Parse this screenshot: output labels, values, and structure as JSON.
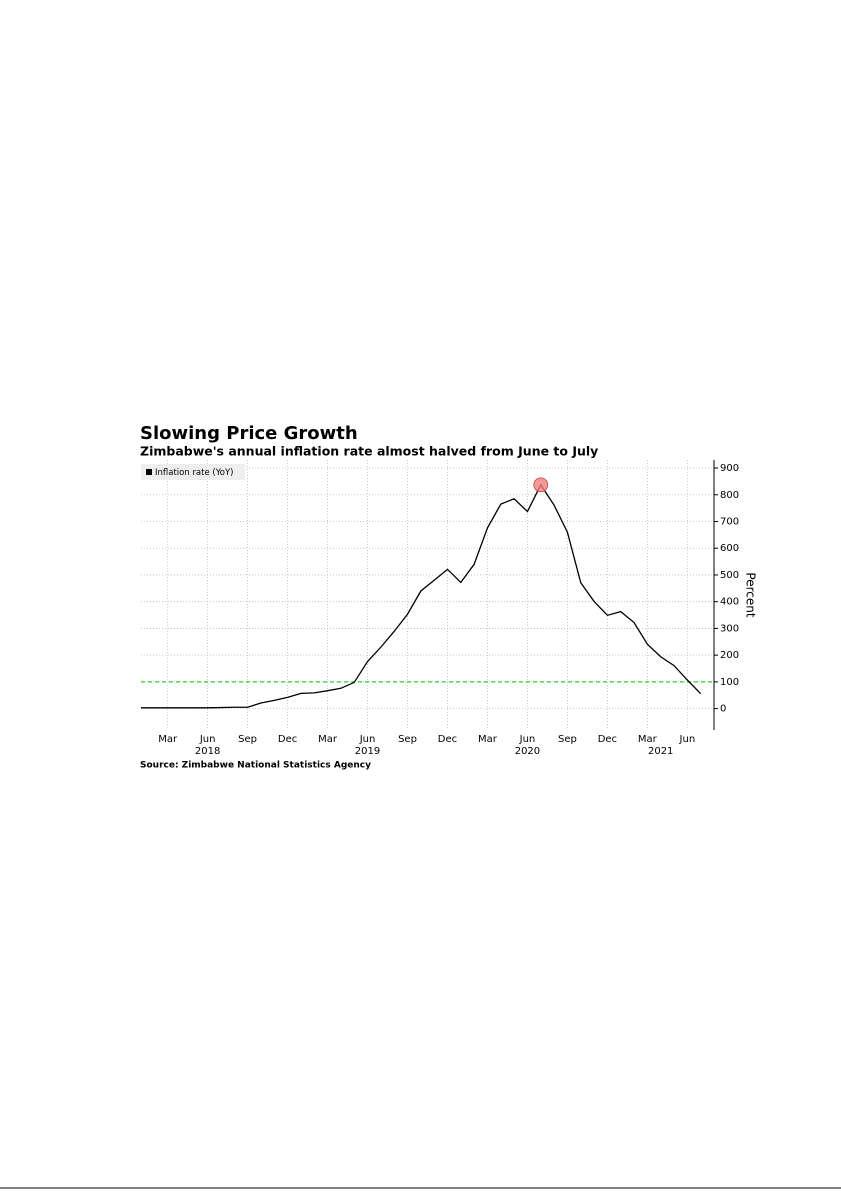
{
  "chart_data": {
    "type": "line",
    "title": "Slowing Price Growth",
    "subtitle": "Zimbabwe's annual inflation rate almost halved from June to July",
    "source": "Source: Zimbabwe National Statistics Agency",
    "y_label": "Percent",
    "x": [
      "2018-01",
      "2018-02",
      "2018-03",
      "2018-04",
      "2018-05",
      "2018-06",
      "2018-07",
      "2018-08",
      "2018-09",
      "2018-10",
      "2018-11",
      "2018-12",
      "2019-01",
      "2019-02",
      "2019-03",
      "2019-04",
      "2019-05",
      "2019-06",
      "2019-07",
      "2019-08",
      "2019-09",
      "2019-10",
      "2019-11",
      "2019-12",
      "2020-01",
      "2020-02",
      "2020-03",
      "2020-04",
      "2020-05",
      "2020-06",
      "2020-07",
      "2020-08",
      "2020-09",
      "2020-10",
      "2020-11",
      "2020-12",
      "2021-01",
      "2021-02",
      "2021-03",
      "2021-04",
      "2021-05",
      "2021-06",
      "2021-07"
    ],
    "series": [
      {
        "name": "Inflation rate (YoY)",
        "color": "#000000",
        "values": [
          3,
          3,
          3,
          3,
          3,
          3,
          4,
          5,
          5,
          21,
          31,
          42,
          57,
          59,
          67,
          76,
          98,
          176,
          230,
          289,
          353,
          440,
          480,
          521,
          472,
          540,
          676,
          765,
          785,
          737,
          837,
          761,
          660,
          471,
          401,
          349,
          363,
          322,
          241,
          194,
          161,
          107,
          56
        ]
      }
    ],
    "highlight": {
      "index": 30,
      "color": "#f08080"
    },
    "reference_line": {
      "value": 100,
      "color": "#33cc33"
    },
    "xlim": [
      "2018-01",
      "2021-08"
    ],
    "xticks": [
      {
        "value": "2018-03",
        "label": "Mar"
      },
      {
        "value": "2018-06",
        "label": "Jun"
      },
      {
        "value": "2018-09",
        "label": "Sep"
      },
      {
        "value": "2018-12",
        "label": "Dec"
      },
      {
        "value": "2019-03",
        "label": "Mar"
      },
      {
        "value": "2019-06",
        "label": "Jun"
      },
      {
        "value": "2019-09",
        "label": "Sep"
      },
      {
        "value": "2019-12",
        "label": "Dec"
      },
      {
        "value": "2020-03",
        "label": "Mar"
      },
      {
        "value": "2020-06",
        "label": "Jun"
      },
      {
        "value": "2020-09",
        "label": "Sep"
      },
      {
        "value": "2020-12",
        "label": "Dec"
      },
      {
        "value": "2021-03",
        "label": "Mar"
      },
      {
        "value": "2021-06",
        "label": "Jun"
      }
    ],
    "year_labels": [
      {
        "value": "2018-06",
        "label": "2018"
      },
      {
        "value": "2019-06",
        "label": "2019"
      },
      {
        "value": "2020-06",
        "label": "2020"
      },
      {
        "value": "2021-04",
        "label": "2021"
      }
    ],
    "ylim": [
      -80,
      930
    ],
    "yticks": [
      0,
      100,
      200,
      300,
      400,
      500,
      600,
      700,
      800,
      900
    ],
    "grid": true
  }
}
